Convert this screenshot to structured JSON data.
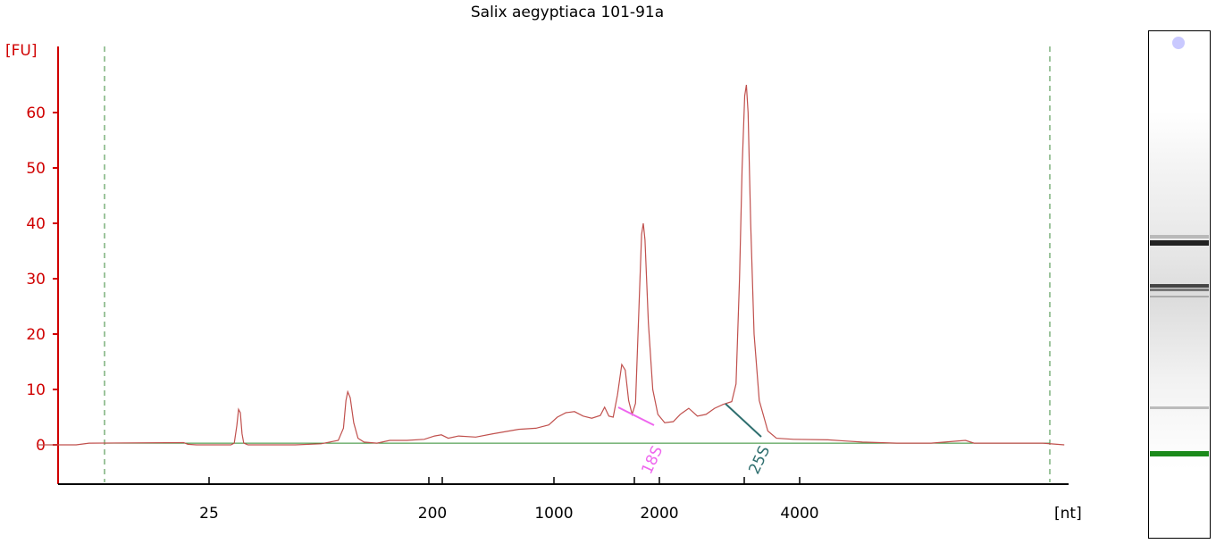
{
  "chart_data": {
    "type": "line",
    "title": "Salix aegyptiaca 101-91a",
    "y_unit_label": "[FU]",
    "x_unit_label": "[nt]",
    "ylim": [
      -7,
      70
    ],
    "y_ticks": [
      0,
      10,
      20,
      30,
      40,
      50,
      60
    ],
    "x_tick_labels": [
      "25",
      "200",
      "1000",
      "2000",
      "4000"
    ],
    "grid": false,
    "series": [
      {
        "name": "",
        "color": "#c0504d",
        "points": [
          [
            0,
            0
          ],
          [
            45,
            0
          ],
          [
            60,
            0.3
          ],
          [
            170,
            0.4
          ],
          [
            175,
            0.1
          ],
          [
            185,
            0
          ],
          [
            225,
            0
          ],
          [
            229,
            0.3
          ],
          [
            232,
            3.5
          ],
          [
            234,
            6.4
          ],
          [
            236,
            5.8
          ],
          [
            238,
            2
          ],
          [
            240,
            0.3
          ],
          [
            245,
            0
          ],
          [
            300,
            0
          ],
          [
            330,
            0.2
          ],
          [
            350,
            0.8
          ],
          [
            356,
            3
          ],
          [
            359,
            8
          ],
          [
            361,
            9.6
          ],
          [
            364,
            8.5
          ],
          [
            368,
            4
          ],
          [
            373,
            1.2
          ],
          [
            380,
            0.5
          ],
          [
            395,
            0.3
          ],
          [
            410,
            0.8
          ],
          [
            430,
            0.8
          ],
          [
            450,
            1
          ],
          [
            462,
            1.6
          ],
          [
            470,
            1.8
          ],
          [
            478,
            1.2
          ],
          [
            490,
            1.6
          ],
          [
            510,
            1.4
          ],
          [
            530,
            2
          ],
          [
            545,
            2.4
          ],
          [
            560,
            2.8
          ],
          [
            580,
            3
          ],
          [
            595,
            3.6
          ],
          [
            605,
            5
          ],
          [
            615,
            5.8
          ],
          [
            625,
            6
          ],
          [
            635,
            5.2
          ],
          [
            645,
            4.8
          ],
          [
            655,
            5.3
          ],
          [
            660,
            6.8
          ],
          [
            665,
            5.2
          ],
          [
            670,
            5
          ],
          [
            675,
            9
          ],
          [
            680,
            14.5
          ],
          [
            684,
            13.5
          ],
          [
            688,
            8
          ],
          [
            692,
            5.5
          ],
          [
            696,
            7.5
          ],
          [
            700,
            25
          ],
          [
            703,
            38
          ],
          [
            705,
            40
          ],
          [
            707,
            37
          ],
          [
            711,
            22
          ],
          [
            716,
            10
          ],
          [
            722,
            5.5
          ],
          [
            730,
            4
          ],
          [
            740,
            4.2
          ],
          [
            748,
            5.5
          ],
          [
            758,
            6.6
          ],
          [
            768,
            5.2
          ],
          [
            778,
            5.5
          ],
          [
            788,
            6.6
          ],
          [
            798,
            7.3
          ],
          [
            808,
            7.8
          ],
          [
            813,
            11
          ],
          [
            817,
            30
          ],
          [
            820,
            50
          ],
          [
            823,
            63
          ],
          [
            825,
            65
          ],
          [
            827,
            60
          ],
          [
            830,
            40
          ],
          [
            834,
            20
          ],
          [
            840,
            8
          ],
          [
            850,
            2.5
          ],
          [
            860,
            1.2
          ],
          [
            880,
            1
          ],
          [
            920,
            0.9
          ],
          [
            940,
            0.7
          ],
          [
            960,
            0.5
          ],
          [
            1000,
            0.3
          ],
          [
            1040,
            0.3
          ],
          [
            1080,
            0.8
          ],
          [
            1090,
            0.3
          ],
          [
            1140,
            0.3
          ],
          [
            1170,
            0.3
          ],
          [
            1195,
            0
          ]
        ]
      }
    ],
    "annotations": [
      {
        "label": "18S",
        "color": "#ee66ee"
      },
      {
        "label": "25S",
        "color": "#2f6f6f"
      }
    ]
  }
}
